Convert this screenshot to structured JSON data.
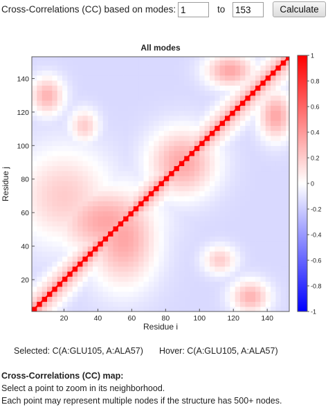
{
  "controls": {
    "label_prefix": "Cross-Correlations (CC) based on modes:",
    "from_value": "1",
    "to_label": "to",
    "to_value": "153",
    "calculate_label": "Calculate"
  },
  "chart_data": {
    "type": "heatmap",
    "title": "All modes",
    "xlabel": "Residue i",
    "ylabel": "Residue j",
    "xlim": [
      1,
      153
    ],
    "ylim": [
      1,
      153
    ],
    "x_ticks": [
      20,
      40,
      60,
      80,
      100,
      120,
      140
    ],
    "y_ticks": [
      20,
      40,
      60,
      80,
      100,
      120,
      140
    ],
    "colorbar": {
      "range": [
        -1,
        1
      ],
      "ticks": [
        -1,
        -0.8,
        -0.6,
        -0.4,
        -0.2,
        0,
        0.2,
        0.4,
        0.6,
        0.8,
        1
      ],
      "tick_labels": [
        "-1",
        "-0.8",
        "-0.6",
        "-0.4",
        "-0.2",
        "0",
        "0.2",
        "0.4",
        "0.6",
        "0.8",
        "1"
      ],
      "colors": [
        "#0000ff",
        "#ffffff",
        "#ff0000"
      ]
    },
    "diagonal_value": 1,
    "background_value": -0.15,
    "positive_regions": [
      {
        "x_center": 20,
        "y_center": 70,
        "x_spread": 20,
        "y_spread": 20,
        "value": 0.2
      },
      {
        "x_center": 45,
        "y_center": 55,
        "x_spread": 20,
        "y_spread": 14,
        "value": 0.35
      },
      {
        "x_center": 55,
        "y_center": 45,
        "x_spread": 14,
        "y_spread": 20,
        "value": 0.35
      },
      {
        "x_center": 90,
        "y_center": 90,
        "x_spread": 14,
        "y_spread": 14,
        "value": 0.35
      },
      {
        "x_center": 10,
        "y_center": 130,
        "x_spread": 7,
        "y_spread": 8,
        "value": 0.3
      },
      {
        "x_center": 130,
        "y_center": 10,
        "x_spread": 8,
        "y_spread": 7,
        "value": 0.3
      },
      {
        "x_center": 118,
        "y_center": 145,
        "x_spread": 10,
        "y_spread": 7,
        "value": 0.35
      },
      {
        "x_center": 145,
        "y_center": 118,
        "x_spread": 7,
        "y_spread": 10,
        "value": 0.35
      },
      {
        "x_center": 112,
        "y_center": 32,
        "x_spread": 7,
        "y_spread": 6,
        "value": 0.2
      },
      {
        "x_center": 32,
        "y_center": 112,
        "x_spread": 6,
        "y_spread": 7,
        "value": 0.2
      }
    ]
  },
  "status": {
    "selected": "Selected: C(A:GLU105, A:ALA57)",
    "hover": "Hover: C(A:GLU105, A:ALA57)"
  },
  "info": {
    "title": "Cross-Correlations (CC) map:",
    "line1": "Select a point to zoom in its neighborhood.",
    "line2": "Each point may represent multiple nodes if the structure has 500+ nodes."
  }
}
